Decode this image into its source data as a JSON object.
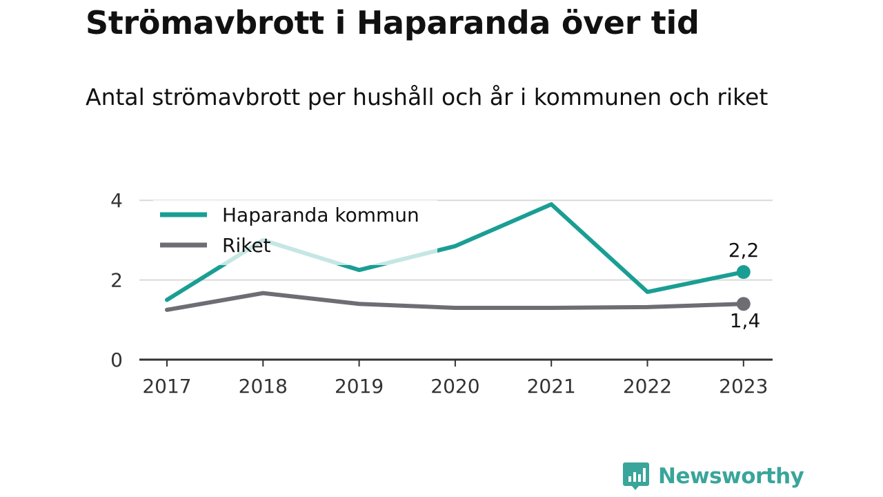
{
  "header": {
    "title": "Strömavbrott i Haparanda över tid",
    "subtitle": "Antal strömavbrott per hushåll och år i kommunen och riket"
  },
  "chart_data": {
    "type": "line",
    "x": [
      "2017",
      "2018",
      "2019",
      "2020",
      "2021",
      "2022",
      "2023"
    ],
    "ylim": [
      0,
      4
    ],
    "yticks": [
      {
        "value": 0,
        "label": "0"
      },
      {
        "value": 2,
        "label": "2"
      },
      {
        "value": 4,
        "label": "4"
      }
    ],
    "grid": true,
    "legend_position": "top-left",
    "series": [
      {
        "name": "Haparanda kommun",
        "color": "#1a9e94",
        "values": [
          1.5,
          3.0,
          2.25,
          2.85,
          3.9,
          1.7,
          2.2
        ],
        "end_label": "2,2"
      },
      {
        "name": "Riket",
        "color": "#6e6d74",
        "values": [
          1.25,
          1.67,
          1.4,
          1.3,
          1.3,
          1.32,
          1.4
        ],
        "end_label": "1,4"
      }
    ]
  },
  "branding": {
    "logo_text": "Newsworthy",
    "logo_icon": "bar-chart-speech-bubble-icon",
    "color": "#3aa59a"
  }
}
